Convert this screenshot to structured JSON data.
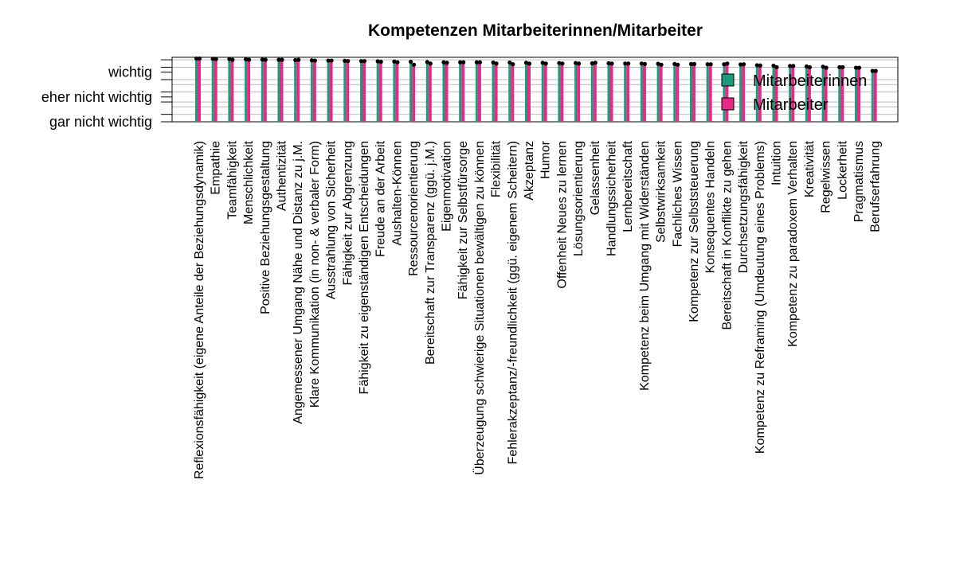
{
  "chart_data": {
    "type": "bar",
    "title": "Kompetenzen Mitarbeiterinnen/Mitarbeiter",
    "xlabel": "",
    "ylabel": "",
    "y_tick_labels": [
      "wichtig",
      "eher nicht wichtig",
      "gar nicht wichtig"
    ],
    "y_tick_values": [
      3,
      2,
      1
    ],
    "ylim": [
      1,
      3.6
    ],
    "legend": {
      "position": "top-right",
      "entries": [
        "Mitarbeiterinnen",
        "Mitarbeiter"
      ]
    },
    "colors": {
      "Mitarbeiterinnen": "#1b9e77",
      "Mitarbeiter": "#e7298a",
      "grid": "#bbbbbb",
      "point": "#000000"
    },
    "grid": true,
    "categories": [
      "Reflexionsfähigkeit (eigene Anteile der Beziehungsdynamik)",
      "Empathie",
      "Teamfähigkeit",
      "Menschlichkeit",
      "Positive Beziehungsgestaltung",
      "Authentizität",
      "Angemessener Umgang Nähe und Distanz zu j.M.",
      "Klare Kommunikation (in non- & verbaler Form)",
      "Ausstrahlung von Sicherheit",
      "Fähigkeit zur Abgrenzung",
      "Fähigkeit zu eigenständigen Entscheidungen",
      "Freude an der Arbeit",
      "Aushalten-Können",
      "Ressourcenorientierung",
      "Bereitschaft zur Transparenz (ggü. j.M.)",
      "Eigenmotivation",
      "Fähigkeit zur Selbstfürsorge",
      "Überzeugung schwierige Situationen bewältigen zu können",
      "Flexibilität",
      "Fehlerakzeptanz/-freundlichkeit (ggü. eigenem Scheitern)",
      "Akzeptanz",
      "Humor",
      "Offenheit Neues zu lernen",
      "Lösungsorientierung",
      "Gelassenheit",
      "Handlungssicherheit",
      "Lernbereitschaft",
      "Kompetenz beim Umgang mit Widerständen",
      "Selbstwirksamkeit",
      "Fachliches Wissen",
      "Kompetenz zur Selbststeuerung",
      "Konsequentes Handeln",
      "Bereitschaft in Konflikte zu gehen",
      "Durchsetzungsfähigkeit",
      "Kompetenz zu Reframing (Umdeutung eines Problems)",
      "Intuition",
      "Kompetenz zu paradoxem Verhalten",
      "Kreativität",
      "Regelwissen",
      "Lockerheit",
      "Pragmatismus",
      "Berufserfahrung"
    ],
    "series": [
      {
        "name": "Mitarbeiterinnen",
        "values": [
          3.55,
          3.54,
          3.53,
          3.52,
          3.51,
          3.5,
          3.49,
          3.48,
          3.47,
          3.46,
          3.45,
          3.44,
          3.43,
          3.42,
          3.41,
          3.4,
          3.4,
          3.4,
          3.39,
          3.39,
          3.38,
          3.38,
          3.37,
          3.37,
          3.36,
          3.36,
          3.35,
          3.35,
          3.34,
          3.33,
          3.33,
          3.32,
          3.32,
          3.31,
          3.28,
          3.26,
          3.25,
          3.23,
          3.22,
          3.2,
          3.18,
          3.05
        ]
      },
      {
        "name": "Mitarbeiter",
        "values": [
          3.55,
          3.53,
          3.5,
          3.5,
          3.5,
          3.5,
          3.5,
          3.47,
          3.47,
          3.45,
          3.45,
          3.42,
          3.4,
          3.3,
          3.35,
          3.38,
          3.4,
          3.4,
          3.35,
          3.32,
          3.35,
          3.35,
          3.35,
          3.35,
          3.38,
          3.35,
          3.35,
          3.33,
          3.3,
          3.3,
          3.33,
          3.32,
          3.35,
          3.32,
          3.27,
          3.2,
          3.25,
          3.2,
          3.18,
          3.2,
          3.18,
          3.05
        ]
      }
    ]
  }
}
